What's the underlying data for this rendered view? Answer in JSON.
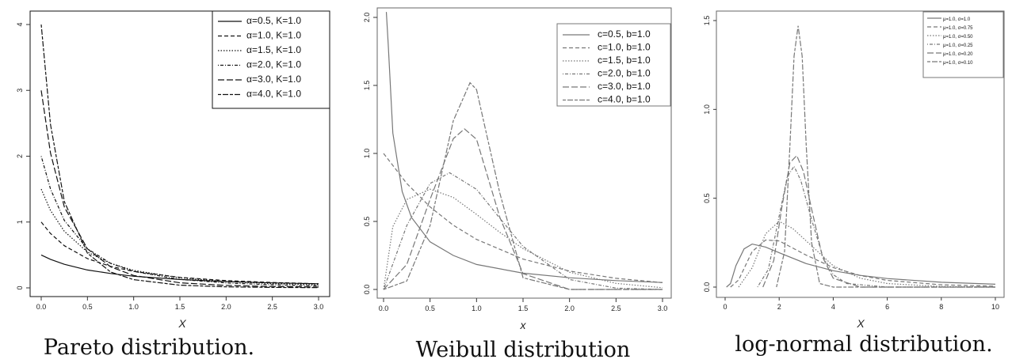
{
  "chart_data": [
    {
      "type": "line",
      "title": "Pareto distribution.",
      "xlabel": "X",
      "ylabel": "",
      "xlim": [
        0,
        3
      ],
      "ylim": [
        0,
        4
      ],
      "xticks": [
        "0.0",
        "0.5",
        "1.0",
        "1.5",
        "2.0",
        "2.5",
        "3.0"
      ],
      "yticks": [
        "0",
        "1",
        "2",
        "3",
        "4"
      ],
      "grid": false,
      "legend": "top-right",
      "line_color": "#111111",
      "series": [
        {
          "name": "α=0.5, K=1.0",
          "dash": "solid",
          "x": [
            0,
            0.1,
            0.25,
            0.5,
            0.75,
            1.0,
            1.5,
            2.0,
            2.5,
            3.0
          ],
          "y": [
            0.5,
            0.434,
            0.358,
            0.272,
            0.219,
            0.177,
            0.127,
            0.096,
            0.076,
            0.0625
          ]
        },
        {
          "name": "α=1.0, K=1.0",
          "dash": "dash",
          "x": [
            0,
            0.1,
            0.25,
            0.5,
            0.75,
            1.0,
            1.5,
            2.0,
            2.5,
            3.0
          ],
          "y": [
            1.0,
            0.826,
            0.64,
            0.444,
            0.327,
            0.25,
            0.16,
            0.111,
            0.082,
            0.0625
          ]
        },
        {
          "name": "α=1.5, K=1.0",
          "dash": "dot",
          "x": [
            0,
            0.1,
            0.25,
            0.5,
            0.75,
            1.0,
            1.5,
            2.0,
            2.5,
            3.0
          ],
          "y": [
            1.5,
            1.176,
            0.859,
            0.544,
            0.372,
            0.265,
            0.152,
            0.096,
            0.065,
            0.047
          ]
        },
        {
          "name": "α=2.0, K=1.0",
          "dash": "dashdot",
          "x": [
            0,
            0.1,
            0.25,
            0.5,
            0.75,
            1.0,
            1.5,
            2.0,
            2.5,
            3.0
          ],
          "y": [
            2.0,
            1.503,
            1.024,
            0.593,
            0.373,
            0.25,
            0.128,
            0.074,
            0.047,
            0.031
          ]
        },
        {
          "name": "α=3.0, K=1.0",
          "dash": "longdash",
          "x": [
            0,
            0.1,
            0.25,
            0.5,
            0.75,
            1.0,
            1.5,
            2.0,
            2.5,
            3.0
          ],
          "y": [
            3.0,
            2.049,
            1.229,
            0.593,
            0.32,
            0.188,
            0.077,
            0.037,
            0.02,
            0.012
          ]
        },
        {
          "name": "α=4.0, K=1.0",
          "dash": "twodash",
          "x": [
            0,
            0.1,
            0.25,
            0.5,
            0.75,
            1.0,
            1.5,
            2.0,
            2.5,
            3.0
          ],
          "y": [
            4.0,
            2.483,
            1.311,
            0.527,
            0.241,
            0.125,
            0.041,
            0.016,
            0.007,
            0.004
          ]
        }
      ]
    },
    {
      "type": "line",
      "title": "Weibull distribution",
      "xlabel": "x",
      "ylabel": "",
      "xlim": [
        0,
        3
      ],
      "ylim": [
        0,
        2
      ],
      "xticks": [
        "0.0",
        "0.5",
        "1.0",
        "1.5",
        "2.0",
        "2.5",
        "3.0"
      ],
      "yticks": [
        "0.0",
        "0.5",
        "1.0",
        "1.5",
        "2.0"
      ],
      "grid": false,
      "legend": "top-right",
      "line_color": "#777777",
      "series": [
        {
          "name": "c=0.5, b=1.0",
          "dash": "solid",
          "x": [
            0.03,
            0.05,
            0.1,
            0.2,
            0.3,
            0.5,
            0.75,
            1.0,
            1.5,
            2.0,
            2.5,
            3.0
          ],
          "y": [
            2.42,
            1.8,
            1.15,
            0.72,
            0.53,
            0.35,
            0.25,
            0.184,
            0.12,
            0.086,
            0.065,
            0.051
          ]
        },
        {
          "name": "c=1.0, b=1.0",
          "dash": "dash",
          "x": [
            0,
            0.25,
            0.5,
            0.75,
            1.0,
            1.5,
            2.0,
            2.5,
            3.0
          ],
          "y": [
            1.0,
            0.779,
            0.607,
            0.472,
            0.368,
            0.223,
            0.135,
            0.082,
            0.05
          ]
        },
        {
          "name": "c=1.5, b=1.0",
          "dash": "dot",
          "x": [
            0,
            0.1,
            0.25,
            0.5,
            0.75,
            1.0,
            1.25,
            1.5,
            2.0,
            2.5,
            3.0
          ],
          "y": [
            0,
            0.462,
            0.661,
            0.737,
            0.677,
            0.552,
            0.42,
            0.3,
            0.127,
            0.045,
            0.013
          ]
        },
        {
          "name": "c=2.0, b=1.0",
          "dash": "dashdot",
          "x": [
            0,
            0.25,
            0.5,
            0.71,
            1.0,
            1.25,
            1.5,
            2.0,
            2.5,
            3.0
          ],
          "y": [
            0,
            0.47,
            0.779,
            0.858,
            0.736,
            0.524,
            0.316,
            0.073,
            0.01,
            0.0
          ]
        },
        {
          "name": "c=3.0, b=1.0",
          "dash": "longdash",
          "x": [
            0,
            0.25,
            0.5,
            0.75,
            0.87,
            1.0,
            1.25,
            1.5,
            2.0,
            2.5,
            3.0
          ],
          "y": [
            0,
            0.184,
            0.662,
            1.108,
            1.18,
            1.104,
            0.531,
            0.116,
            0.0,
            0.0,
            0.0
          ]
        },
        {
          "name": "c=4.0, b=1.0",
          "dash": "twodash",
          "x": [
            0,
            0.25,
            0.5,
            0.75,
            0.93,
            1.0,
            1.25,
            1.5,
            2.0,
            2.5,
            3.0
          ],
          "y": [
            0,
            0.062,
            0.47,
            1.24,
            1.52,
            1.47,
            0.709,
            0.086,
            0.0,
            0.0,
            0.0
          ]
        }
      ]
    },
    {
      "type": "line",
      "title": "log-normal distribution.",
      "xlabel": "X",
      "ylabel": "",
      "xlim": [
        0,
        10
      ],
      "ylim": [
        0,
        1.5
      ],
      "xticks": [
        "0",
        "2",
        "4",
        "6",
        "8",
        "10"
      ],
      "yticks": [
        "0.0",
        "0.5",
        "1.0",
        "1.5"
      ],
      "grid": false,
      "legend": "top-right",
      "line_color": "#777777",
      "series": [
        {
          "name": "μ=1.0, σ=1.0",
          "dash": "solid",
          "x": [
            0.05,
            0.2,
            0.4,
            0.7,
            1.0,
            1.5,
            2.0,
            3.0,
            4.0,
            5.0,
            6.0,
            8.0,
            10.0
          ],
          "y": [
            0.0,
            0.02,
            0.12,
            0.215,
            0.242,
            0.225,
            0.193,
            0.132,
            0.092,
            0.066,
            0.048,
            0.027,
            0.016
          ]
        },
        {
          "name": "μ=1.0, σ=0.75",
          "dash": "dash",
          "x": [
            0.2,
            0.5,
            1.0,
            1.5,
            2.0,
            3.0,
            4.0,
            5.0,
            6.0,
            8.0,
            10.0
          ],
          "y": [
            0.0,
            0.04,
            0.2,
            0.265,
            0.26,
            0.18,
            0.11,
            0.065,
            0.038,
            0.013,
            0.005
          ]
        },
        {
          "name": "μ=1.0, σ=0.50",
          "dash": "dot",
          "x": [
            0.5,
            1.0,
            1.5,
            2.0,
            2.5,
            3.0,
            4.0,
            5.0,
            6.0,
            8.0,
            10.0
          ],
          "y": [
            0.0,
            0.108,
            0.3,
            0.37,
            0.33,
            0.26,
            0.12,
            0.05,
            0.02,
            0.003,
            0.0
          ]
        },
        {
          "name": "μ=1.0, σ=0.25",
          "dash": "dashdot",
          "x": [
            1.2,
            1.6,
            2.0,
            2.3,
            2.55,
            2.8,
            3.2,
            3.6,
            4.0,
            4.5,
            6.0,
            10.0
          ],
          "y": [
            0.0,
            0.1,
            0.4,
            0.62,
            0.68,
            0.6,
            0.38,
            0.18,
            0.07,
            0.02,
            0.0,
            0.0
          ]
        },
        {
          "name": "μ=1.0, σ=0.20",
          "dash": "longdash",
          "x": [
            1.4,
            1.8,
            2.1,
            2.4,
            2.65,
            2.9,
            3.2,
            3.6,
            4.0,
            5.0,
            10.0
          ],
          "y": [
            0.0,
            0.15,
            0.45,
            0.7,
            0.74,
            0.65,
            0.44,
            0.17,
            0.05,
            0.0,
            0.0
          ]
        },
        {
          "name": "μ=1.0, σ=0.10",
          "dash": "twodash",
          "x": [
            1.9,
            2.2,
            2.4,
            2.55,
            2.7,
            2.85,
            3.0,
            3.2,
            3.5,
            4.0,
            10.0
          ],
          "y": [
            0.0,
            0.2,
            0.8,
            1.3,
            1.47,
            1.3,
            0.8,
            0.25,
            0.02,
            0.0,
            0.0
          ]
        }
      ]
    }
  ]
}
